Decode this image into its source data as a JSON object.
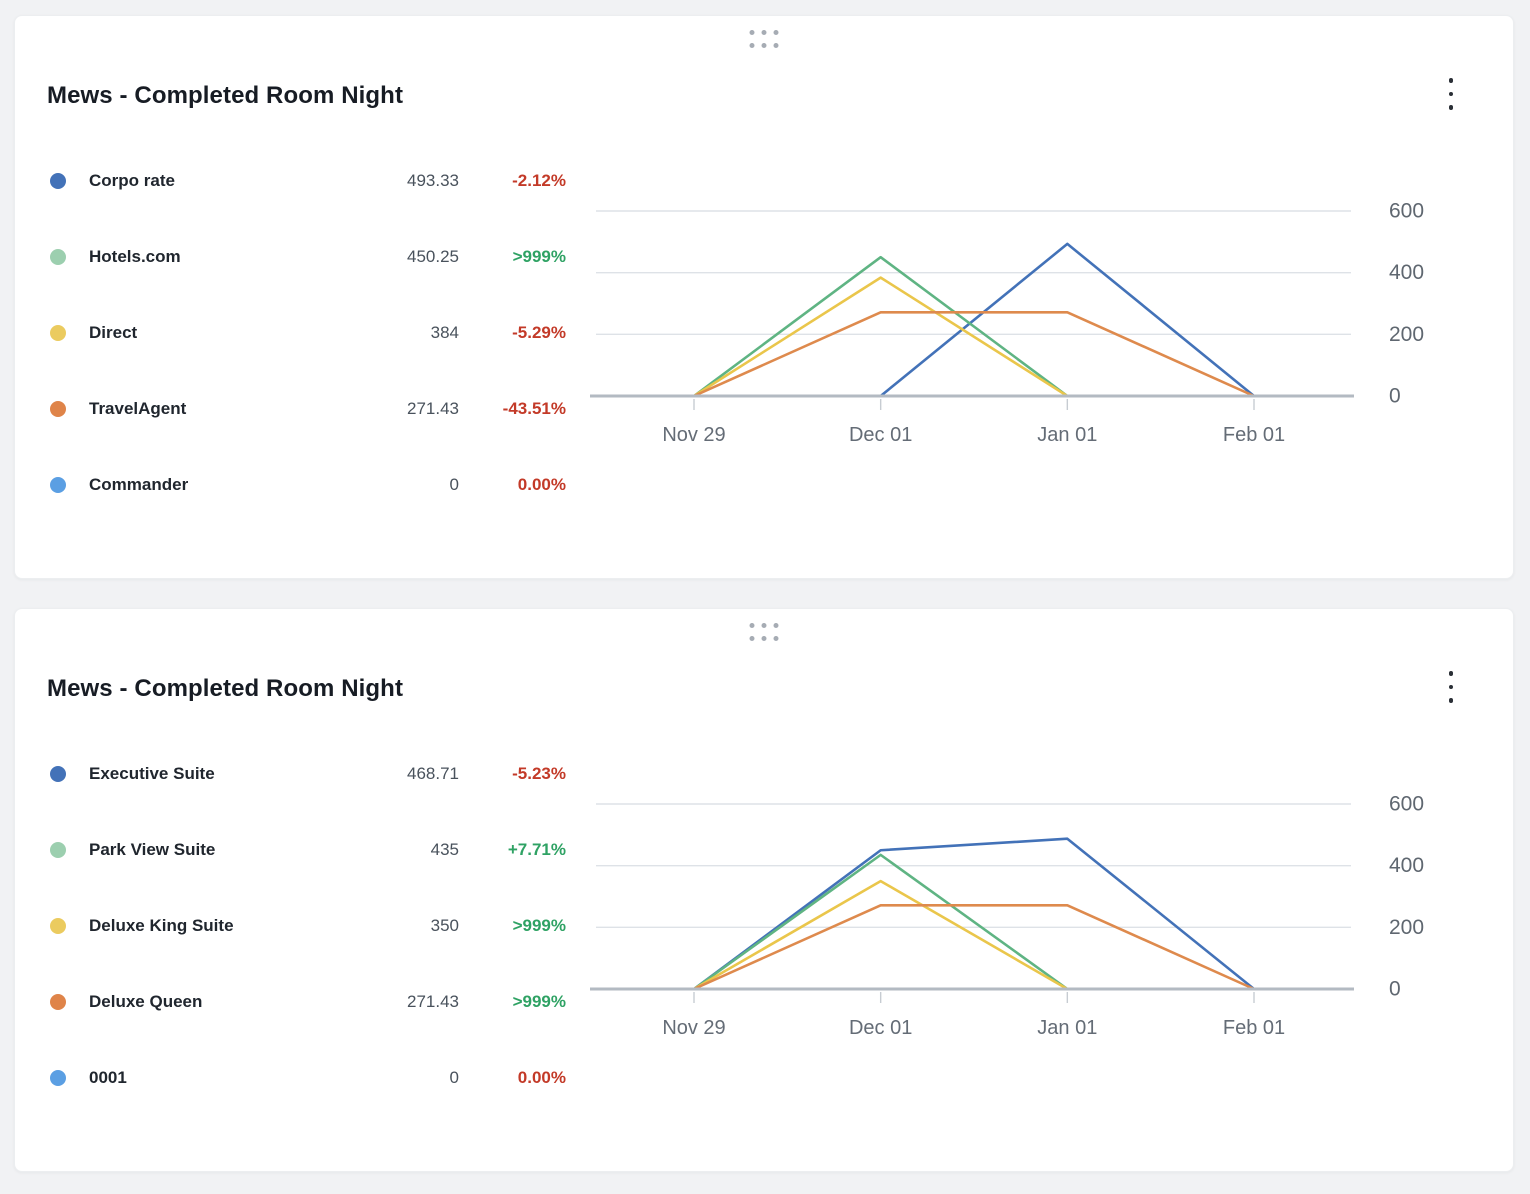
{
  "page": {
    "background_color": "#F1F2F4",
    "positive_color": "#2FA264",
    "negative_color": "#C33A28"
  },
  "icons": {
    "drag_handle": "grip-dots",
    "card_menu": "kebab-vertical"
  },
  "cards": [
    {
      "title": "Mews - Completed Room Night",
      "legend": [
        {
          "label": "Corpo rate",
          "value": "493.33",
          "change": "-2.12%",
          "change_color": "#C33A28",
          "dot_color": "#4372B8"
        },
        {
          "label": "Hotels.com",
          "value": "450.25",
          "change": ">999%",
          "change_color": "#2FA264",
          "dot_color": "#9CCFAF"
        },
        {
          "label": "Direct",
          "value": "384",
          "change": "-5.29%",
          "change_color": "#C33A28",
          "dot_color": "#EBCB5F"
        },
        {
          "label": "TravelAgent",
          "value": "271.43",
          "change": "-43.51%",
          "change_color": "#C33A28",
          "dot_color": "#DF8449"
        },
        {
          "label": "Commander",
          "value": "0",
          "change": "0.00%",
          "change_color": "#C33A28",
          "dot_color": "#5B9FE3"
        }
      ]
    },
    {
      "title": "Mews - Completed Room Night",
      "legend": [
        {
          "label": "Executive Suite",
          "value": "468.71",
          "change": "-5.23%",
          "change_color": "#C33A28",
          "dot_color": "#4372B8"
        },
        {
          "label": "Park View Suite",
          "value": "435",
          "change": "+7.71%",
          "change_color": "#2FA264",
          "dot_color": "#9CCFAF"
        },
        {
          "label": "Deluxe King Suite",
          "value": "350",
          "change": ">999%",
          "change_color": "#2FA264",
          "dot_color": "#EBCB5F"
        },
        {
          "label": "Deluxe Queen",
          "value": "271.43",
          "change": ">999%",
          "change_color": "#2FA264",
          "dot_color": "#DF8449"
        },
        {
          "label": "0001",
          "value": "0",
          "change": "0.00%",
          "change_color": "#C33A28",
          "dot_color": "#5B9FE3"
        }
      ]
    }
  ],
  "chart_data": [
    {
      "type": "line",
      "title": "Mews - Completed Room Night",
      "categories": [
        "Nov 29",
        "Dec 01",
        "Jan 01",
        "Feb 01"
      ],
      "series": [
        {
          "name": "Corpo rate",
          "color": "#4372B8",
          "values": [
            null,
            0,
            493.33,
            0
          ]
        },
        {
          "name": "Hotels.com",
          "color": "#5FB483",
          "values": [
            0,
            450.25,
            0,
            null
          ]
        },
        {
          "name": "Direct",
          "color": "#EAC64B",
          "values": [
            0,
            384,
            0,
            null
          ]
        },
        {
          "name": "TravelAgent",
          "color": "#DE8A4D",
          "values": [
            0,
            271.43,
            271.43,
            0
          ]
        },
        {
          "name": "Commander",
          "color": "#5B9FE3",
          "values": [
            0,
            0,
            0,
            0
          ]
        }
      ],
      "y_ticks": [
        600,
        400,
        200,
        0
      ],
      "ylim": [
        0,
        600
      ],
      "grid": "horizontal",
      "y_axis_position": "right"
    },
    {
      "type": "line",
      "title": "Mews - Completed Room Night",
      "categories": [
        "Nov 29",
        "Dec 01",
        "Jan 01",
        "Feb 01"
      ],
      "series": [
        {
          "name": "Executive Suite",
          "color": "#4372B8",
          "values": [
            0,
            450,
            487.42,
            0
          ]
        },
        {
          "name": "Park View Suite",
          "color": "#5FB483",
          "values": [
            0,
            435,
            0,
            null
          ]
        },
        {
          "name": "Deluxe King Suite",
          "color": "#EAC64B",
          "values": [
            0,
            350,
            0,
            null
          ]
        },
        {
          "name": "Deluxe Queen",
          "color": "#DE8A4D",
          "values": [
            0,
            271.43,
            271.43,
            0
          ]
        },
        {
          "name": "0001",
          "color": "#5B9FE3",
          "values": [
            0,
            0,
            0,
            0
          ]
        }
      ],
      "y_ticks": [
        600,
        400,
        200,
        0
      ],
      "ylim": [
        0,
        600
      ],
      "grid": "horizontal",
      "y_axis_position": "right"
    }
  ]
}
